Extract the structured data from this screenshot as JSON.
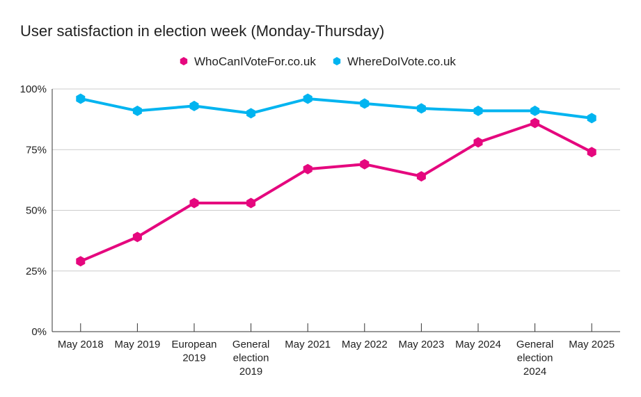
{
  "chart_data": {
    "type": "line",
    "title": "User satisfaction in election week (Monday-Thursday)",
    "xlabel": "",
    "ylabel": "",
    "categories": [
      [
        "May 2018"
      ],
      [
        "May 2019"
      ],
      [
        "European",
        "2019"
      ],
      [
        "General",
        "election",
        "2019"
      ],
      [
        "May 2021"
      ],
      [
        "May 2022"
      ],
      [
        "May 2023"
      ],
      [
        "May 2024"
      ],
      [
        "General",
        "election",
        "2024"
      ],
      [
        "May 2025"
      ]
    ],
    "series": [
      {
        "name": "WhoCanIVoteFor.co.uk",
        "color": "#E5077E",
        "values": [
          29,
          39,
          53,
          53,
          67,
          69,
          64,
          78,
          86,
          74
        ]
      },
      {
        "name": "WhereDoIVote.co.uk",
        "color": "#00B4F0",
        "values": [
          96,
          91,
          93,
          90,
          96,
          94,
          92,
          91,
          91,
          88
        ]
      }
    ],
    "ylim": [
      0,
      100
    ],
    "yticks": [
      0,
      25,
      50,
      75,
      100
    ],
    "ytick_labels": [
      "0%",
      "25%",
      "50%",
      "75%",
      "100%"
    ],
    "grid": true,
    "legend": "top-center"
  }
}
